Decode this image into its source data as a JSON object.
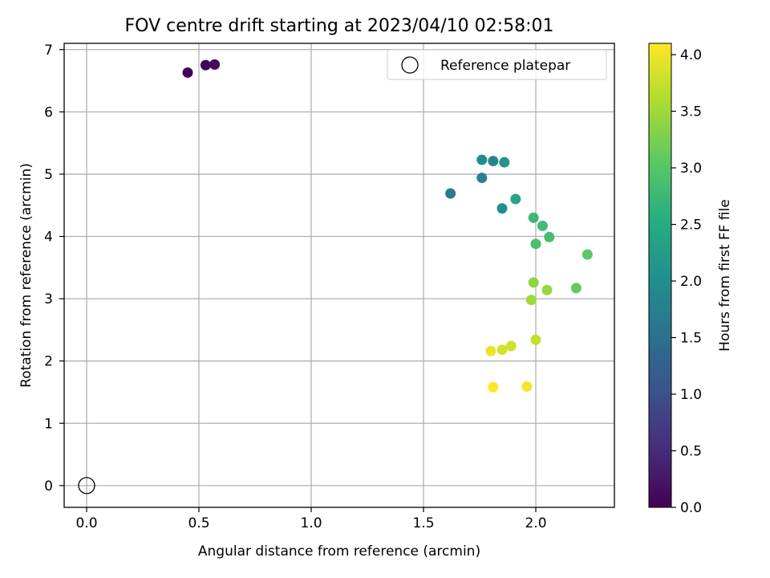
{
  "chart_data": {
    "type": "scatter",
    "title": "FOV centre drift starting at 2023/04/10 02:58:01",
    "xlabel": "Angular distance from reference (arcmin)",
    "ylabel": "Rotation from reference (arcmin)",
    "xlim": [
      -0.1,
      2.35
    ],
    "ylim": [
      -0.35,
      7.1
    ],
    "x_ticks": [
      0.0,
      0.5,
      1.0,
      1.5,
      2.0
    ],
    "x_tick_labels": [
      "0.0",
      "0.5",
      "1.0",
      "1.5",
      "2.0"
    ],
    "y_ticks": [
      0,
      1,
      2,
      3,
      4,
      5,
      6,
      7
    ],
    "y_tick_labels": [
      "0",
      "1",
      "2",
      "3",
      "4",
      "5",
      "6",
      "7"
    ],
    "grid": true,
    "legend": {
      "location": "upper-right",
      "entries": [
        {
          "label": "Reference platepar",
          "marker": "open-circle"
        }
      ]
    },
    "reference_point": {
      "x": 0.0,
      "y": 0.0
    },
    "colorbar": {
      "label": "Hours from first FF file",
      "colormap": "viridis",
      "range": [
        0.0,
        4.1
      ],
      "ticks": [
        0.0,
        0.5,
        1.0,
        1.5,
        2.0,
        2.5,
        3.0,
        3.5,
        4.0
      ],
      "tick_labels": [
        "0.0",
        "0.5",
        "1.0",
        "1.5",
        "2.0",
        "2.5",
        "3.0",
        "3.5",
        "4.0"
      ]
    },
    "series": [
      {
        "points": [
          {
            "x": 0.45,
            "y": 6.63,
            "hours": 0.0
          },
          {
            "x": 0.53,
            "y": 6.75,
            "hours": 0.05
          },
          {
            "x": 0.57,
            "y": 6.76,
            "hours": 0.1
          },
          {
            "x": 1.62,
            "y": 4.69,
            "hours": 1.7
          },
          {
            "x": 1.76,
            "y": 4.94,
            "hours": 1.8
          },
          {
            "x": 1.81,
            "y": 5.21,
            "hours": 1.85
          },
          {
            "x": 1.76,
            "y": 5.23,
            "hours": 2.0
          },
          {
            "x": 1.85,
            "y": 4.45,
            "hours": 2.05
          },
          {
            "x": 1.86,
            "y": 5.19,
            "hours": 2.1
          },
          {
            "x": 1.91,
            "y": 4.6,
            "hours": 2.4
          },
          {
            "x": 1.99,
            "y": 4.3,
            "hours": 2.75
          },
          {
            "x": 2.03,
            "y": 4.17,
            "hours": 2.8
          },
          {
            "x": 2.06,
            "y": 3.99,
            "hours": 2.85
          },
          {
            "x": 2.0,
            "y": 3.88,
            "hours": 2.9
          },
          {
            "x": 2.23,
            "y": 3.71,
            "hours": 3.05
          },
          {
            "x": 2.18,
            "y": 3.17,
            "hours": 3.1
          },
          {
            "x": 1.99,
            "y": 3.26,
            "hours": 3.4
          },
          {
            "x": 2.05,
            "y": 3.14,
            "hours": 3.45
          },
          {
            "x": 1.98,
            "y": 2.98,
            "hours": 3.5
          },
          {
            "x": 2.0,
            "y": 2.34,
            "hours": 3.75
          },
          {
            "x": 1.89,
            "y": 2.24,
            "hours": 3.8
          },
          {
            "x": 1.85,
            "y": 2.18,
            "hours": 3.85
          },
          {
            "x": 1.8,
            "y": 2.16,
            "hours": 4.0
          },
          {
            "x": 1.96,
            "y": 1.59,
            "hours": 4.05
          },
          {
            "x": 1.81,
            "y": 1.58,
            "hours": 4.1
          }
        ]
      }
    ]
  }
}
